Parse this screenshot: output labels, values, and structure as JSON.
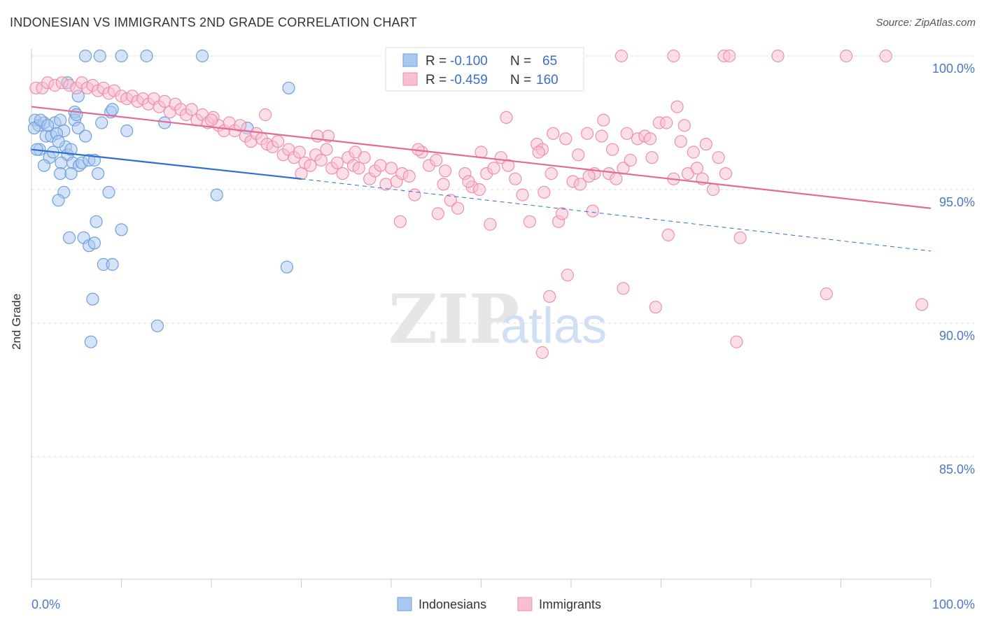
{
  "header": {
    "title": "INDONESIAN VS IMMIGRANTS 2ND GRADE CORRELATION CHART",
    "source": "Source: ZipAtlas.com"
  },
  "legend_box": {
    "rows": [
      {
        "r_label": "R =",
        "r_value": "-0.100",
        "n_label": "N =",
        "n_value": "65"
      },
      {
        "r_label": "R =",
        "r_value": "-0.459",
        "n_label": "N =",
        "n_value": "160"
      }
    ]
  },
  "bottom_legend": [
    "Indonesians",
    "Immigrants"
  ],
  "watermark": {
    "zip": "ZIP",
    "atlas": "atlas"
  },
  "colors": {
    "indonesians_fill": "#a9c8f0",
    "indonesians_stroke": "#6f9fdc",
    "indonesians_line": "#2a6fd1",
    "immigrants_fill": "#f7bfd0",
    "immigrants_stroke": "#ee8fae",
    "immigrants_line": "#e46a97",
    "axis_text": "#4a78c8",
    "grid": "#dddddd"
  },
  "chart_data": {
    "type": "scatter",
    "title": "INDONESIAN VS IMMIGRANTS 2ND GRADE CORRELATION CHART",
    "xlabel": "",
    "ylabel": "2nd Grade",
    "xlim": [
      0,
      100
    ],
    "ylim": [
      80.4,
      101.2
    ],
    "x_tick_labels": [
      "0.0%",
      "100.0%"
    ],
    "y_ticks": [
      100,
      95,
      90,
      85
    ],
    "y_tick_labels": [
      "100.0%",
      "95.0%",
      "90.0%",
      "85.0%"
    ],
    "grid": true,
    "legend_position": "top-center",
    "series": [
      {
        "name": "Indonesians",
        "R": -0.1,
        "N": 65,
        "trend": {
          "x0": 0,
          "y0": 96.5,
          "x1": 30,
          "y1": 95.4,
          "dashed_to_x": 100,
          "dashed_to_y": 92.7
        },
        "points": [
          [
            6.0,
            100.0
          ],
          [
            7.6,
            100.0
          ],
          [
            10.0,
            100.0
          ],
          [
            12.8,
            100.0
          ],
          [
            19.0,
            100.0
          ],
          [
            4.0,
            99.0
          ],
          [
            28.6,
            98.8
          ],
          [
            5.2,
            98.5
          ],
          [
            4.8,
            97.9
          ],
          [
            8.8,
            97.9
          ],
          [
            0.4,
            97.6
          ],
          [
            0.8,
            97.4
          ],
          [
            1.4,
            97.5
          ],
          [
            2.6,
            97.5
          ],
          [
            3.2,
            97.6
          ],
          [
            4.8,
            97.6
          ],
          [
            0.3,
            97.3
          ],
          [
            3.6,
            97.2
          ],
          [
            5.2,
            97.3
          ],
          [
            7.8,
            97.5
          ],
          [
            10.6,
            97.2
          ],
          [
            14.8,
            97.5
          ],
          [
            24.0,
            97.3
          ],
          [
            1.6,
            97.0
          ],
          [
            2.2,
            97.0
          ],
          [
            0.9,
            96.5
          ],
          [
            2.0,
            96.2
          ],
          [
            3.8,
            96.6
          ],
          [
            4.0,
            96.3
          ],
          [
            1.4,
            95.9
          ],
          [
            3.3,
            96.0
          ],
          [
            4.6,
            96.0
          ],
          [
            5.3,
            95.9
          ],
          [
            5.6,
            96.0
          ],
          [
            6.4,
            96.1
          ],
          [
            7.0,
            96.1
          ],
          [
            3.2,
            95.6
          ],
          [
            4.4,
            95.6
          ],
          [
            7.4,
            95.6
          ],
          [
            3.6,
            94.9
          ],
          [
            8.6,
            94.9
          ],
          [
            20.6,
            94.8
          ],
          [
            3.0,
            94.6
          ],
          [
            7.2,
            93.8
          ],
          [
            10.0,
            93.5
          ],
          [
            4.2,
            93.2
          ],
          [
            5.8,
            93.2
          ],
          [
            6.4,
            92.9
          ],
          [
            7.0,
            93.0
          ],
          [
            8.0,
            92.2
          ],
          [
            9.0,
            92.2
          ],
          [
            28.4,
            92.1
          ],
          [
            6.8,
            90.9
          ],
          [
            14.0,
            89.9
          ],
          [
            6.6,
            89.3
          ],
          [
            1.0,
            97.6
          ],
          [
            2.8,
            97.1
          ],
          [
            6.0,
            97.0
          ],
          [
            0.6,
            96.5
          ],
          [
            4.4,
            96.5
          ],
          [
            1.8,
            97.4
          ],
          [
            9.0,
            98.0
          ],
          [
            5.0,
            97.8
          ],
          [
            3.0,
            96.8
          ],
          [
            2.4,
            96.4
          ]
        ]
      },
      {
        "name": "Immigrants",
        "R": -0.459,
        "N": 160,
        "trend": {
          "x0": 0,
          "y0": 98.1,
          "x1": 100,
          "y1": 94.3
        },
        "points": [
          [
            65.6,
            100.0
          ],
          [
            71.4,
            100.0
          ],
          [
            77.0,
            100.0
          ],
          [
            77.6,
            100.0
          ],
          [
            83.0,
            100.0
          ],
          [
            90.6,
            100.0
          ],
          [
            95.0,
            100.0
          ],
          [
            0.5,
            98.8
          ],
          [
            1.2,
            98.8
          ],
          [
            1.8,
            99.0
          ],
          [
            2.6,
            98.9
          ],
          [
            3.4,
            99.0
          ],
          [
            4.2,
            98.9
          ],
          [
            5.0,
            98.8
          ],
          [
            5.6,
            99.0
          ],
          [
            6.2,
            98.8
          ],
          [
            6.8,
            98.9
          ],
          [
            7.4,
            98.7
          ],
          [
            8.0,
            98.8
          ],
          [
            8.6,
            98.6
          ],
          [
            9.2,
            98.7
          ],
          [
            10.0,
            98.5
          ],
          [
            10.6,
            98.4
          ],
          [
            11.2,
            98.5
          ],
          [
            11.8,
            98.3
          ],
          [
            12.4,
            98.4
          ],
          [
            13.0,
            98.2
          ],
          [
            13.6,
            98.4
          ],
          [
            14.2,
            98.1
          ],
          [
            14.8,
            98.3
          ],
          [
            15.4,
            97.9
          ],
          [
            16.0,
            98.2
          ],
          [
            16.6,
            98.0
          ],
          [
            17.2,
            97.8
          ],
          [
            17.8,
            98.0
          ],
          [
            18.4,
            97.6
          ],
          [
            19.0,
            97.8
          ],
          [
            19.6,
            97.5
          ],
          [
            20.2,
            97.7
          ],
          [
            20.8,
            97.4
          ],
          [
            21.4,
            97.2
          ],
          [
            22.0,
            97.5
          ],
          [
            22.6,
            97.2
          ],
          [
            23.2,
            97.4
          ],
          [
            23.8,
            97.0
          ],
          [
            24.4,
            96.8
          ],
          [
            25.0,
            97.1
          ],
          [
            25.6,
            96.9
          ],
          [
            26.2,
            96.7
          ],
          [
            26.8,
            96.6
          ],
          [
            27.4,
            96.8
          ],
          [
            28.0,
            96.3
          ],
          [
            28.6,
            96.5
          ],
          [
            29.2,
            96.2
          ],
          [
            29.8,
            96.4
          ],
          [
            30.4,
            96.0
          ],
          [
            31.0,
            95.9
          ],
          [
            31.6,
            96.3
          ],
          [
            32.2,
            96.1
          ],
          [
            32.8,
            96.5
          ],
          [
            33.4,
            95.8
          ],
          [
            34.0,
            96.0
          ],
          [
            34.6,
            95.6
          ],
          [
            35.2,
            96.2
          ],
          [
            35.8,
            95.9
          ],
          [
            36.4,
            95.8
          ],
          [
            37.0,
            96.2
          ],
          [
            37.6,
            95.4
          ],
          [
            38.2,
            95.7
          ],
          [
            38.8,
            95.9
          ],
          [
            39.4,
            95.2
          ],
          [
            40.0,
            95.8
          ],
          [
            40.6,
            95.3
          ],
          [
            41.2,
            95.6
          ],
          [
            42.0,
            95.5
          ],
          [
            42.6,
            94.8
          ],
          [
            43.4,
            96.4
          ],
          [
            44.2,
            95.9
          ],
          [
            45.0,
            96.1
          ],
          [
            45.8,
            95.2
          ],
          [
            46.6,
            94.6
          ],
          [
            47.4,
            94.3
          ],
          [
            48.2,
            95.6
          ],
          [
            49.0,
            95.1
          ],
          [
            49.8,
            95.0
          ],
          [
            50.6,
            95.6
          ],
          [
            51.4,
            95.8
          ],
          [
            52.2,
            96.2
          ],
          [
            53.0,
            95.9
          ],
          [
            53.8,
            95.4
          ],
          [
            54.6,
            94.8
          ],
          [
            55.4,
            93.8
          ],
          [
            56.2,
            96.7
          ],
          [
            57.0,
            94.9
          ],
          [
            57.8,
            95.6
          ],
          [
            58.6,
            93.8
          ],
          [
            59.4,
            96.9
          ],
          [
            60.2,
            95.3
          ],
          [
            61.0,
            95.2
          ],
          [
            61.8,
            97.1
          ],
          [
            62.6,
            95.6
          ],
          [
            63.4,
            97.0
          ],
          [
            64.2,
            95.6
          ],
          [
            65.0,
            95.4
          ],
          [
            65.8,
            95.8
          ],
          [
            66.6,
            96.1
          ],
          [
            67.4,
            96.9
          ],
          [
            68.2,
            97.0
          ],
          [
            69.0,
            96.2
          ],
          [
            69.8,
            97.5
          ],
          [
            70.6,
            97.5
          ],
          [
            71.4,
            95.4
          ],
          [
            72.2,
            96.8
          ],
          [
            73.0,
            95.6
          ],
          [
            74.0,
            95.8
          ],
          [
            75.0,
            96.7
          ],
          [
            33.0,
            97.0
          ],
          [
            36.0,
            96.4
          ],
          [
            43.0,
            96.5
          ],
          [
            46.0,
            95.7
          ],
          [
            50.0,
            96.4
          ],
          [
            52.8,
            97.7
          ],
          [
            56.8,
            96.5
          ],
          [
            58.0,
            97.1
          ],
          [
            60.8,
            96.3
          ],
          [
            62.0,
            95.5
          ],
          [
            63.6,
            97.6
          ],
          [
            64.6,
            96.5
          ],
          [
            66.2,
            97.1
          ],
          [
            68.8,
            96.9
          ],
          [
            71.8,
            98.1
          ],
          [
            72.6,
            97.4
          ],
          [
            73.6,
            96.4
          ],
          [
            74.6,
            95.4
          ],
          [
            75.8,
            95.0
          ],
          [
            76.4,
            96.2
          ],
          [
            77.2,
            95.6
          ],
          [
            26.0,
            97.8
          ],
          [
            20.0,
            97.6
          ],
          [
            56.4,
            96.4
          ],
          [
            51.0,
            93.7
          ],
          [
            59.0,
            94.1
          ],
          [
            62.4,
            94.2
          ],
          [
            70.8,
            93.3
          ],
          [
            78.8,
            93.2
          ],
          [
            45.2,
            94.1
          ],
          [
            41.0,
            93.8
          ],
          [
            57.6,
            91.0
          ],
          [
            65.8,
            91.3
          ],
          [
            69.4,
            90.6
          ],
          [
            88.4,
            91.1
          ],
          [
            99.0,
            90.7
          ],
          [
            78.4,
            89.3
          ],
          [
            56.8,
            88.9
          ],
          [
            59.6,
            91.8
          ],
          [
            30.0,
            95.6
          ],
          [
            31.8,
            97.0
          ],
          [
            48.6,
            95.3
          ]
        ]
      }
    ]
  }
}
